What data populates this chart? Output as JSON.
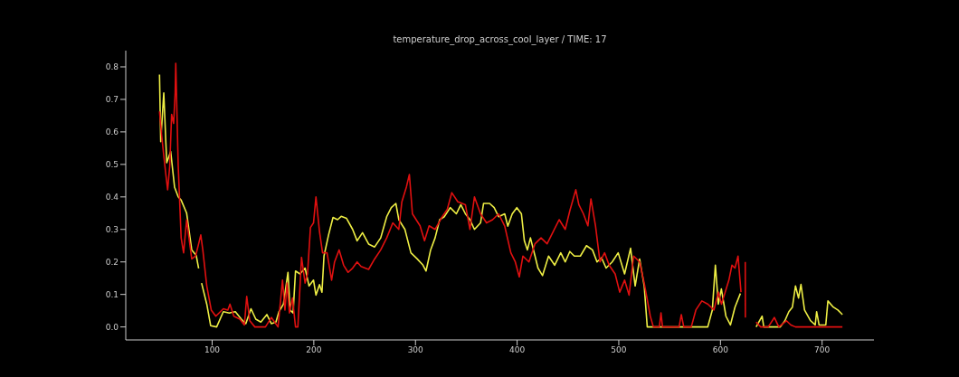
{
  "chart_data": {
    "type": "line",
    "title": "temperature_drop_across_cool_layer / TIME: 17",
    "xlim": [
      15,
      751
    ],
    "xticks": [
      100,
      200,
      300,
      400,
      500,
      600,
      700
    ],
    "ylim": [
      -0.04,
      0.85
    ],
    "yticks": [
      {
        "value": 0,
        "label": "0.0"
      },
      0.1,
      0.2,
      0.3,
      0.4,
      0.5,
      0.6,
      0.7,
      0.8
    ],
    "grid": false,
    "legend": false,
    "marker": "none",
    "line_style": "solid",
    "series": [
      {
        "color": "#eeee44",
        "x": [
          48.2,
          49.4,
          52.4,
          55.3,
          59.2,
          63,
          66.6,
          69.5,
          74.9,
          79.9,
          84.3,
          86.7,
          88.2,
          89.6,
          94.7,
          98.5,
          104.4,
          111,
          116.9,
          122.8,
          128.7,
          133.1,
          138.2,
          142.9,
          147.9,
          153.8,
          158.3,
          162.7,
          165.7,
          170.1,
          174.6,
          176.6,
          179.6,
          182,
          186.4,
          191.4,
          195.3,
          199.7,
          202.1,
          205.6,
          208,
          210,
          214.5,
          218.9,
          223.4,
          226.9,
          232.2,
          238.2,
          242.6,
          247.9,
          253.9,
          259.8,
          265.8,
          271.7,
          276.2,
          280.7,
          283.6,
          289.6,
          295.5,
          301.5,
          307.4,
          310.4,
          314.9,
          319.3,
          323.8,
          328.3,
          334.2,
          340.2,
          344.6,
          349.1,
          353.6,
          358,
          364,
          367,
          372.9,
          377.4,
          381.8,
          387.8,
          390.8,
          395.2,
          399.7,
          404.2,
          407.1,
          410.1,
          413.1,
          417.6,
          420.5,
          425,
          430.9,
          436.9,
          442.9,
          447.3,
          451.8,
          456.3,
          462.2,
          468.2,
          474.1,
          478.6,
          483,
          487.5,
          493.5,
          499.4,
          505.7,
          511.6,
          516.1,
          520.5,
          525,
          528,
          543,
          587.5,
          592,
          595,
          597.9,
          600.9,
          605.4,
          609.8,
          614.3,
          619.6,
          627,
          635.1,
          641,
          642.6,
          658.9,
          663.4,
          667.3,
          670.8,
          673.8,
          676.8,
          679.2,
          682.7,
          688.7,
          693.2,
          694.6,
          697,
          703.6,
          705.7,
          711,
          715.5,
          720
        ],
        "values": [
          0.776,
          0.57,
          0.72,
          0.505,
          0.54,
          0.43,
          0.4,
          0.39,
          0.35,
          0.237,
          0.22,
          0.18,
          null,
          0.135,
          0.07,
          0.004,
          0,
          0.047,
          0.043,
          0.047,
          0.024,
          0.01,
          0.056,
          0.024,
          0.015,
          0.038,
          0.01,
          0.015,
          0.047,
          0.07,
          0.168,
          0.052,
          0.043,
          0.172,
          0.163,
          0.181,
          0.126,
          0.144,
          0.098,
          0.13,
          0.107,
          0.218,
          0.283,
          0.337,
          0.33,
          0.34,
          0.334,
          0.3,
          0.265,
          0.29,
          0.255,
          0.246,
          0.274,
          0.339,
          0.367,
          0.38,
          0.33,
          0.3,
          0.228,
          0.21,
          0.19,
          0.172,
          0.237,
          0.274,
          0.33,
          0.339,
          0.367,
          0.348,
          0.376,
          0.348,
          0.33,
          0.3,
          0.32,
          0.38,
          0.38,
          0.367,
          0.339,
          0.348,
          0.31,
          0.348,
          0.367,
          0.348,
          0.265,
          0.237,
          0.274,
          0.218,
          0.181,
          0.158,
          0.218,
          0.19,
          0.228,
          0.2,
          0.232,
          0.218,
          0.218,
          0.25,
          0.237,
          0.2,
          0.213,
          0.181,
          0.2,
          0.228,
          0.163,
          0.242,
          0.126,
          0.209,
          0.126,
          0,
          0,
          0,
          0.052,
          0.19,
          0.07,
          0.117,
          0.033,
          0.006,
          0.061,
          0.103,
          null,
          0,
          0.033,
          0,
          0,
          0.019,
          0.047,
          0.061,
          0.126,
          0.089,
          0.131,
          0.052,
          0.019,
          0.006,
          0.047,
          0.006,
          0.006,
          0.08,
          0.061,
          0.052,
          0.038
        ]
      },
      {
        "color": "#e01010",
        "x": [
          48.2,
          50.3,
          54.1,
          56.2,
          58.3,
          60.1,
          62.1,
          63.6,
          64.2,
          66.6,
          69.5,
          71.9,
          74.9,
          79.9,
          83.7,
          86.7,
          88.8,
          90.8,
          94.7,
          99.1,
          103.6,
          111,
          115.4,
          117.5,
          121.3,
          127.2,
          131.7,
          134,
          137,
          142,
          152.4,
          158.3,
          164.8,
          169.2,
          171.6,
          173.7,
          176,
          179,
          182,
          184.3,
          187.9,
          191.4,
          193.8,
          196.7,
          199.7,
          202.1,
          205.6,
          208.6,
          213,
          217.5,
          220.4,
          224.9,
          229.3,
          233.7,
          238.2,
          242.6,
          246.5,
          253.9,
          259.8,
          265.8,
          271.7,
          277.7,
          283.6,
          286.6,
          291.1,
          294,
          297,
          304.5,
          308.9,
          313.4,
          319.3,
          325.3,
          331.3,
          335.7,
          341.7,
          349.1,
          353.6,
          358,
          364,
          369.9,
          375.9,
          381.8,
          387.8,
          393.8,
          398.2,
          402.1,
          405.7,
          411.6,
          417.6,
          423.5,
          429.5,
          435.4,
          441.4,
          447.3,
          451.8,
          457.7,
          460.7,
          465.2,
          469.6,
          472.6,
          477.1,
          481.5,
          486,
          490.5,
          496.4,
          500.9,
          505.7,
          510.1,
          514.6,
          520.5,
          525,
          531,
          534,
          539.9,
          541.5,
          543,
          559.3,
          561.5,
          563.9,
          571.3,
          575.8,
          581.7,
          587.7,
          593.6,
          598,
          601,
          608.3,
          611.3,
          614.3,
          617.3,
          620.2,
          622,
          624.4,
          624.5,
          630,
          635.1,
          639.6,
          647,
          653,
          657.4,
          664.9,
          669.3,
          673.8,
          720
        ],
        "values": [
          0.663,
          0.589,
          0.478,
          0.422,
          0.496,
          0.654,
          0.626,
          0.72,
          0.811,
          0.496,
          0.274,
          0.228,
          0.33,
          0.209,
          0.218,
          0.256,
          0.283,
          0.237,
          0.126,
          0.052,
          0.033,
          0.056,
          0.052,
          0.07,
          0.033,
          0.024,
          0.006,
          0.094,
          0.019,
          0,
          0,
          0.029,
          0,
          0.144,
          0.052,
          0.135,
          0.043,
          0.089,
          0,
          0,
          0.214,
          0.135,
          0.163,
          0.306,
          0.32,
          0.4,
          0.293,
          0.228,
          0.228,
          0.144,
          0.2,
          0.237,
          0.19,
          0.168,
          0.181,
          0.2,
          0.186,
          0.177,
          0.209,
          0.237,
          0.274,
          0.32,
          0.3,
          0.385,
          0.431,
          0.469,
          0.348,
          0.311,
          0.265,
          0.311,
          0.3,
          0.334,
          0.362,
          0.413,
          0.385,
          0.376,
          0.3,
          0.4,
          0.348,
          0.32,
          0.33,
          0.348,
          0.31,
          0.228,
          0.2,
          0.154,
          0.218,
          0.2,
          0.256,
          0.274,
          0.256,
          0.293,
          0.33,
          0.3,
          0.357,
          0.422,
          0.376,
          0.348,
          0.311,
          0.394,
          0.311,
          0.2,
          0.228,
          0.19,
          0.163,
          0.107,
          0.144,
          0.098,
          0.218,
          0.2,
          0.135,
          0.033,
          0,
          0,
          0.043,
          0,
          0,
          0.038,
          0,
          0,
          0.052,
          0.08,
          0.07,
          0.052,
          0.107,
          0.07,
          0.144,
          0.19,
          0.181,
          0.218,
          0.107,
          null,
          0.2,
          0.029,
          null,
          0.015,
          0,
          0,
          0.029,
          0,
          0.019,
          0.006,
          0,
          0
        ]
      }
    ]
  }
}
